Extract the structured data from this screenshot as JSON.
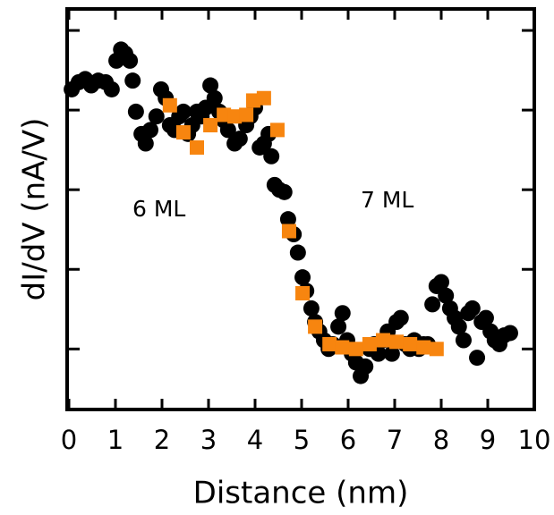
{
  "chart_data": {
    "type": "scatter",
    "xlabel": "Distance (nm)",
    "ylabel": "dI/dV (nA/V)",
    "annotations": [
      "6 ML",
      "7 ML"
    ],
    "xlim": [
      0,
      10
    ],
    "xticks": [
      0,
      1,
      2,
      3,
      4,
      5,
      6,
      7,
      8,
      9,
      10
    ],
    "ylim": [
      0.24,
      5.27
    ],
    "yticks": [
      1,
      2,
      3,
      4,
      5
    ],
    "series": [
      {
        "color": "#000000",
        "marker": "circle",
        "x": [
          0.06,
          0.21,
          0.35,
          0.48,
          0.63,
          0.79,
          0.92,
          1.02,
          1.12,
          1.21,
          1.31,
          1.37,
          1.44,
          1.56,
          1.65,
          1.75,
          1.88,
          1.98,
          2.08,
          2.17,
          2.27,
          2.37,
          2.46,
          2.56,
          2.65,
          2.75,
          2.85,
          2.94,
          3.04,
          3.13,
          3.23,
          3.33,
          3.42,
          3.56,
          3.67,
          3.81,
          3.9,
          4.0,
          4.1,
          4.19,
          4.29,
          4.35,
          4.42,
          4.52,
          4.63,
          4.71,
          4.83,
          4.92,
          5.02,
          5.1,
          5.21,
          5.29,
          5.38,
          5.48,
          5.58,
          5.67,
          5.79,
          5.88,
          5.98,
          6.08,
          6.17,
          6.27,
          6.37,
          6.46,
          6.56,
          6.65,
          6.75,
          6.85,
          6.94,
          7.04,
          7.13,
          7.23,
          7.33,
          7.42,
          7.52,
          7.62,
          7.71,
          7.81,
          7.9,
          8.0,
          8.1,
          8.19,
          8.29,
          8.38,
          8.48,
          8.58,
          8.67,
          8.77,
          8.87,
          8.96,
          9.06,
          9.15,
          9.25,
          9.35,
          9.48
        ],
        "values": [
          4.26,
          4.35,
          4.39,
          4.31,
          4.37,
          4.35,
          4.26,
          4.62,
          4.76,
          4.71,
          4.62,
          4.37,
          3.98,
          3.7,
          3.58,
          3.75,
          3.92,
          4.26,
          4.15,
          3.81,
          3.75,
          3.92,
          3.98,
          3.7,
          3.81,
          3.98,
          3.92,
          4.03,
          4.31,
          4.15,
          3.98,
          3.87,
          3.75,
          3.58,
          3.64,
          3.81,
          3.92,
          4.03,
          3.53,
          3.58,
          3.7,
          3.42,
          3.06,
          3.0,
          2.97,
          2.63,
          2.44,
          2.21,
          1.9,
          1.73,
          1.51,
          1.34,
          1.22,
          1.11,
          1.0,
          1.06,
          1.28,
          1.45,
          1.11,
          0.94,
          0.83,
          0.66,
          0.78,
          1.0,
          1.06,
          0.94,
          1.11,
          1.22,
          0.94,
          1.34,
          1.39,
          1.06,
          1.0,
          1.11,
          1.0,
          1.06,
          1.06,
          1.56,
          1.79,
          1.84,
          1.67,
          1.51,
          1.39,
          1.28,
          1.11,
          1.45,
          1.51,
          0.89,
          1.34,
          1.39,
          1.22,
          1.11,
          1.06,
          1.17,
          1.2
        ]
      },
      {
        "color": "#f7850f",
        "marker": "square",
        "x": [
          2.17,
          2.46,
          2.75,
          3.04,
          3.33,
          3.56,
          3.81,
          3.96,
          4.19,
          4.48,
          4.73,
          5.02,
          5.29,
          5.6,
          5.87,
          6.17,
          6.46,
          6.75,
          7.04,
          7.33,
          7.62,
          7.9
        ],
        "values": [
          4.06,
          3.72,
          3.53,
          3.81,
          3.94,
          3.92,
          3.94,
          4.12,
          4.15,
          3.75,
          2.48,
          1.7,
          1.28,
          1.06,
          1.02,
          1.0,
          1.06,
          1.11,
          1.09,
          1.06,
          1.02,
          1.0
        ]
      }
    ]
  }
}
